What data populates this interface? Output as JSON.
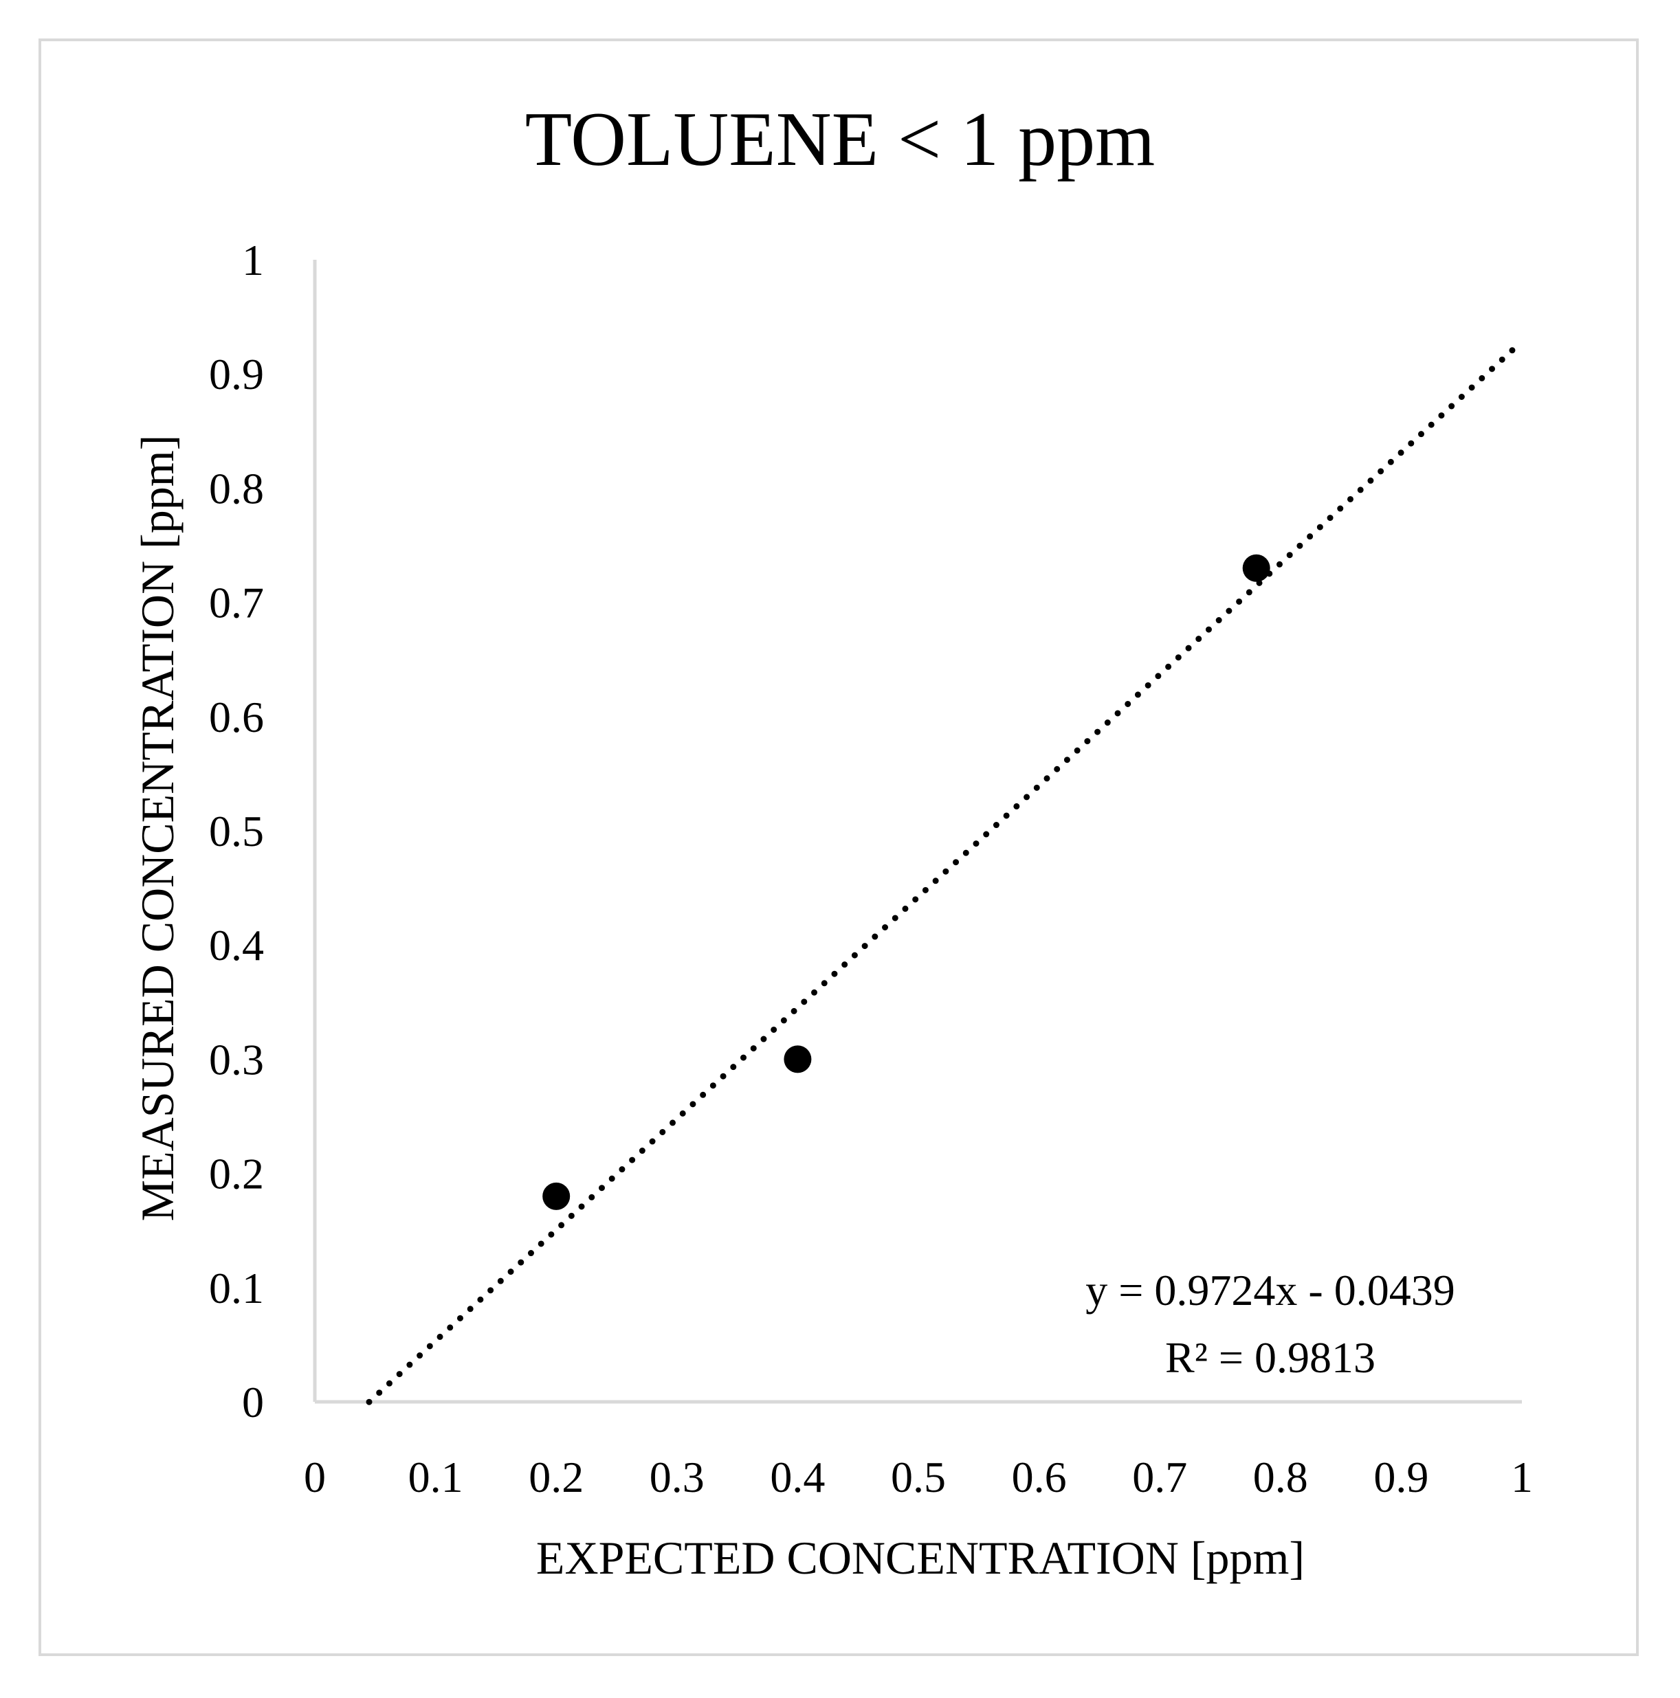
{
  "chart_data": {
    "type": "scatter",
    "title": "TOLUENE < 1 ppm",
    "xlabel": "EXPECTED CONCENTRATION [ppm]",
    "ylabel": "MEASURED CONCENTRATION [ppm]",
    "xlim": [
      0,
      1
    ],
    "ylim": [
      0,
      1
    ],
    "x_ticks": [
      "0",
      "0.1",
      "0.2",
      "0.3",
      "0.4",
      "0.5",
      "0.6",
      "0.7",
      "0.8",
      "0.9",
      "1"
    ],
    "y_ticks": [
      "0",
      "0.1",
      "0.2",
      "0.3",
      "0.4",
      "0.5",
      "0.6",
      "0.7",
      "0.8",
      "0.9",
      "1"
    ],
    "grid": false,
    "legend": "none",
    "marker_color": "#000000",
    "axis_color": "#d9d9d9",
    "series": [
      {
        "x": [
          0.2,
          0.4,
          0.78
        ],
        "y": [
          0.18,
          0.3,
          0.73
        ]
      }
    ],
    "trendline": {
      "style": "dotted",
      "slope": 0.9724,
      "intercept": -0.0439,
      "x_range": [
        0.045,
        1
      ]
    },
    "annotations": {
      "equation": "y = 0.9724x - 0.0439",
      "r_squared": "R² = 0.9813"
    }
  }
}
